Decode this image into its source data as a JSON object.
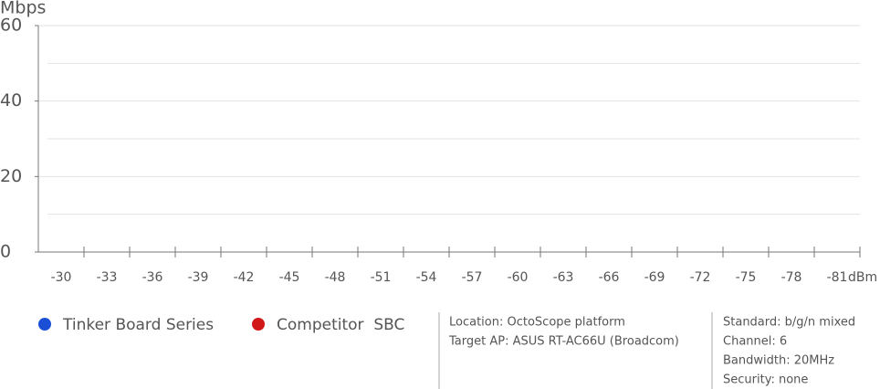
{
  "chart_data": {
    "type": "line",
    "y_label": "Mbps",
    "x_label": "dBm",
    "categories": [
      "-30",
      "-33",
      "-36",
      "-39",
      "-42",
      "-45",
      "-48",
      "-51",
      "-54",
      "-57",
      "-60",
      "-63",
      "-66",
      "-69",
      "-72",
      "-75",
      "-78",
      "-81"
    ],
    "series": [
      {
        "name": "Tinker Board Series",
        "color": "#1a4fd6",
        "values": [
          null,
          null,
          null,
          null,
          null,
          null,
          null,
          null,
          null,
          null,
          null,
          null,
          null,
          null,
          null,
          null,
          null,
          null
        ]
      },
      {
        "name": "Competitor  SBC",
        "color": "#d01818",
        "values": [
          null,
          null,
          null,
          null,
          null,
          null,
          null,
          null,
          null,
          null,
          null,
          null,
          null,
          null,
          null,
          null,
          null,
          null
        ]
      }
    ],
    "ylim": [
      0,
      60
    ],
    "yticks": [
      0,
      20,
      40,
      60
    ],
    "minor_yticks": [
      10,
      30,
      50
    ],
    "grid": true,
    "annotations": [
      [
        "Location: OctoScope platform",
        "Target AP: ASUS RT-AC66U (Broadcom)"
      ],
      [
        "Standard: b/g/n mixed",
        "Channel: 6",
        "Bandwidth: 20MHz",
        "Security: none"
      ]
    ]
  }
}
